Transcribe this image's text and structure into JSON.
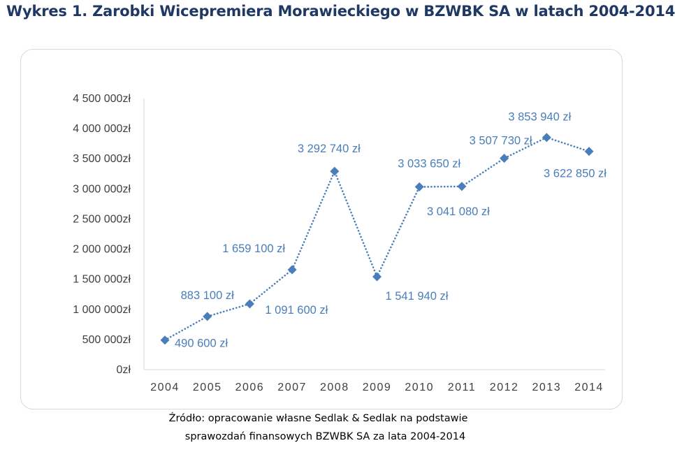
{
  "title": "Wykres 1. Zarobki Wicepremiera Morawieckiego w BZWBK SA w latach 2004-2014",
  "source_line1": "Źródło: opracowanie własne Sedlak & Sedlak na podstawie",
  "source_line2": "sprawozdań finansowych BZWBK SA za lata 2004-2014",
  "colors": {
    "series": "#4a7ebb",
    "label": "#4a7ebb",
    "axis_text": "#3f3f3f",
    "axis_line": "#d9d9d9"
  },
  "chart_data": {
    "type": "line",
    "title": "",
    "xlabel": "",
    "ylabel": "",
    "ylim": [
      0,
      4500000
    ],
    "ytick_step": 500000,
    "categories": [
      "2004",
      "2005",
      "2006",
      "2007",
      "2008",
      "2009",
      "2010",
      "2011",
      "2012",
      "2013",
      "2014"
    ],
    "yticks": [
      "0zł",
      "500 000zł",
      "1 000 000zł",
      "1 500 000zł",
      "2 000 000zł",
      "2 500 000zł",
      "3 000 000zł",
      "3 500 000zł",
      "4 000 000zł",
      "4 500 000zł"
    ],
    "values": [
      490600,
      883100,
      1091600,
      1659100,
      3292740,
      1541940,
      3033650,
      3041080,
      3507730,
      3853940,
      3622850
    ],
    "data_labels": [
      "490 600 zł",
      "883 100 zł",
      "1 091 600 zł",
      "1 659 100 zł",
      "3 292 740 zł",
      "1 541 940 zł",
      "3 033 650 zł",
      "3 041 080 zł",
      "3 507 730 zł",
      "3 853 940 zł",
      "3 622 850 zł"
    ],
    "grid": false,
    "legend": "none",
    "line_style": "dotted",
    "marker": "diamond"
  }
}
